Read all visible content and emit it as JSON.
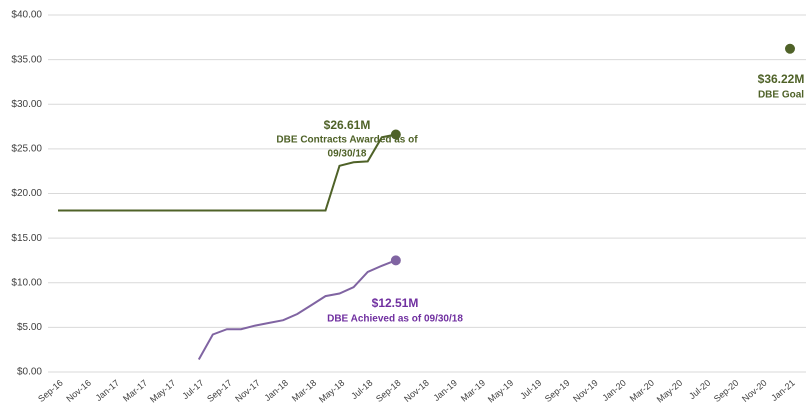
{
  "chart_data": {
    "type": "line",
    "categories": [
      "Sep-16",
      null,
      "Nov-16",
      null,
      "Jan-17",
      null,
      "Mar-17",
      null,
      "May-17",
      null,
      "Jul-17",
      null,
      "Sep-17",
      null,
      "Nov-17",
      null,
      "Jan-18",
      null,
      "Mar-18",
      null,
      "May-18",
      null,
      "Jul-18",
      null,
      "Sep-18",
      null,
      "Nov-18",
      null,
      "Jan-19",
      null,
      "Mar-19",
      null,
      "May-19",
      null,
      "Jul-19",
      null,
      "Sep-19",
      null,
      "Nov-19",
      null,
      "Jan-20",
      null,
      "Mar-20",
      null,
      "May-20",
      null,
      "Jul-20",
      null,
      "Sep-20",
      null,
      "Nov-20",
      null,
      "Jan-21"
    ],
    "series": [
      {
        "color": "#4f6228",
        "dashed": false,
        "end_marker": true,
        "values": [
          18.1,
          18.1,
          18.1,
          18.1,
          18.1,
          18.1,
          18.1,
          18.1,
          18.1,
          18.1,
          18.1,
          18.1,
          18.1,
          18.1,
          18.1,
          18.1,
          18.1,
          18.1,
          18.1,
          18.1,
          23.1,
          23.5,
          23.6,
          26.3,
          26.61,
          null,
          null,
          null,
          null,
          null,
          null,
          null,
          null,
          null,
          null,
          null,
          null,
          null,
          null,
          null,
          null,
          null,
          null,
          null,
          null,
          null,
          null,
          null,
          null,
          null,
          null,
          null,
          null
        ]
      },
      {
        "color": "#4f6228",
        "dashed": true,
        "end_marker": true,
        "values": [
          null,
          null,
          null,
          null,
          null,
          null,
          null,
          null,
          null,
          null,
          null,
          null,
          null,
          null,
          null,
          null,
          null,
          null,
          null,
          null,
          null,
          null,
          null,
          null,
          26.61,
          null,
          null,
          null,
          null,
          null,
          null,
          null,
          null,
          null,
          null,
          null,
          null,
          null,
          null,
          null,
          null,
          null,
          null,
          null,
          null,
          null,
          null,
          null,
          null,
          null,
          null,
          null,
          36.22
        ]
      },
      {
        "color": "#8064a2",
        "dashed": false,
        "end_marker": true,
        "values": [
          null,
          null,
          null,
          null,
          null,
          null,
          null,
          null,
          null,
          null,
          1.4,
          4.2,
          4.8,
          4.8,
          5.2,
          5.5,
          5.8,
          6.5,
          7.5,
          8.5,
          8.8,
          9.5,
          11.2,
          11.9,
          12.51,
          null,
          null,
          null,
          null,
          null,
          null,
          null,
          null,
          null,
          null,
          null,
          null,
          null,
          null,
          null,
          null,
          null,
          null,
          null,
          null,
          null,
          null,
          null,
          null,
          null,
          null,
          null,
          null
        ]
      }
    ],
    "annotations": [
      {
        "lines": [
          "$26.61M",
          "DBE Contracts Awarded as of",
          "09/30/18"
        ],
        "color": "#4f6228"
      },
      {
        "lines": [
          "$36.22M",
          "DBE Goal"
        ],
        "color": "#4f6228"
      },
      {
        "lines": [
          "$12.51M",
          "DBE Achieved as of 09/30/18"
        ],
        "color": "#7030a0"
      }
    ],
    "ylim": [
      0,
      40
    ],
    "yticks": [
      {
        "value": 0,
        "label": "$0.00"
      },
      {
        "value": 5,
        "label": "$5.00"
      },
      {
        "value": 10,
        "label": "$10.00"
      },
      {
        "value": 15,
        "label": "$15.00"
      },
      {
        "value": 20,
        "label": "$20.00"
      },
      {
        "value": 25,
        "label": "$25.00"
      },
      {
        "value": 30,
        "label": "$30.00"
      },
      {
        "value": 35,
        "label": "$35.00"
      },
      {
        "value": 40,
        "label": "$40.00"
      }
    ],
    "grid": true
  }
}
